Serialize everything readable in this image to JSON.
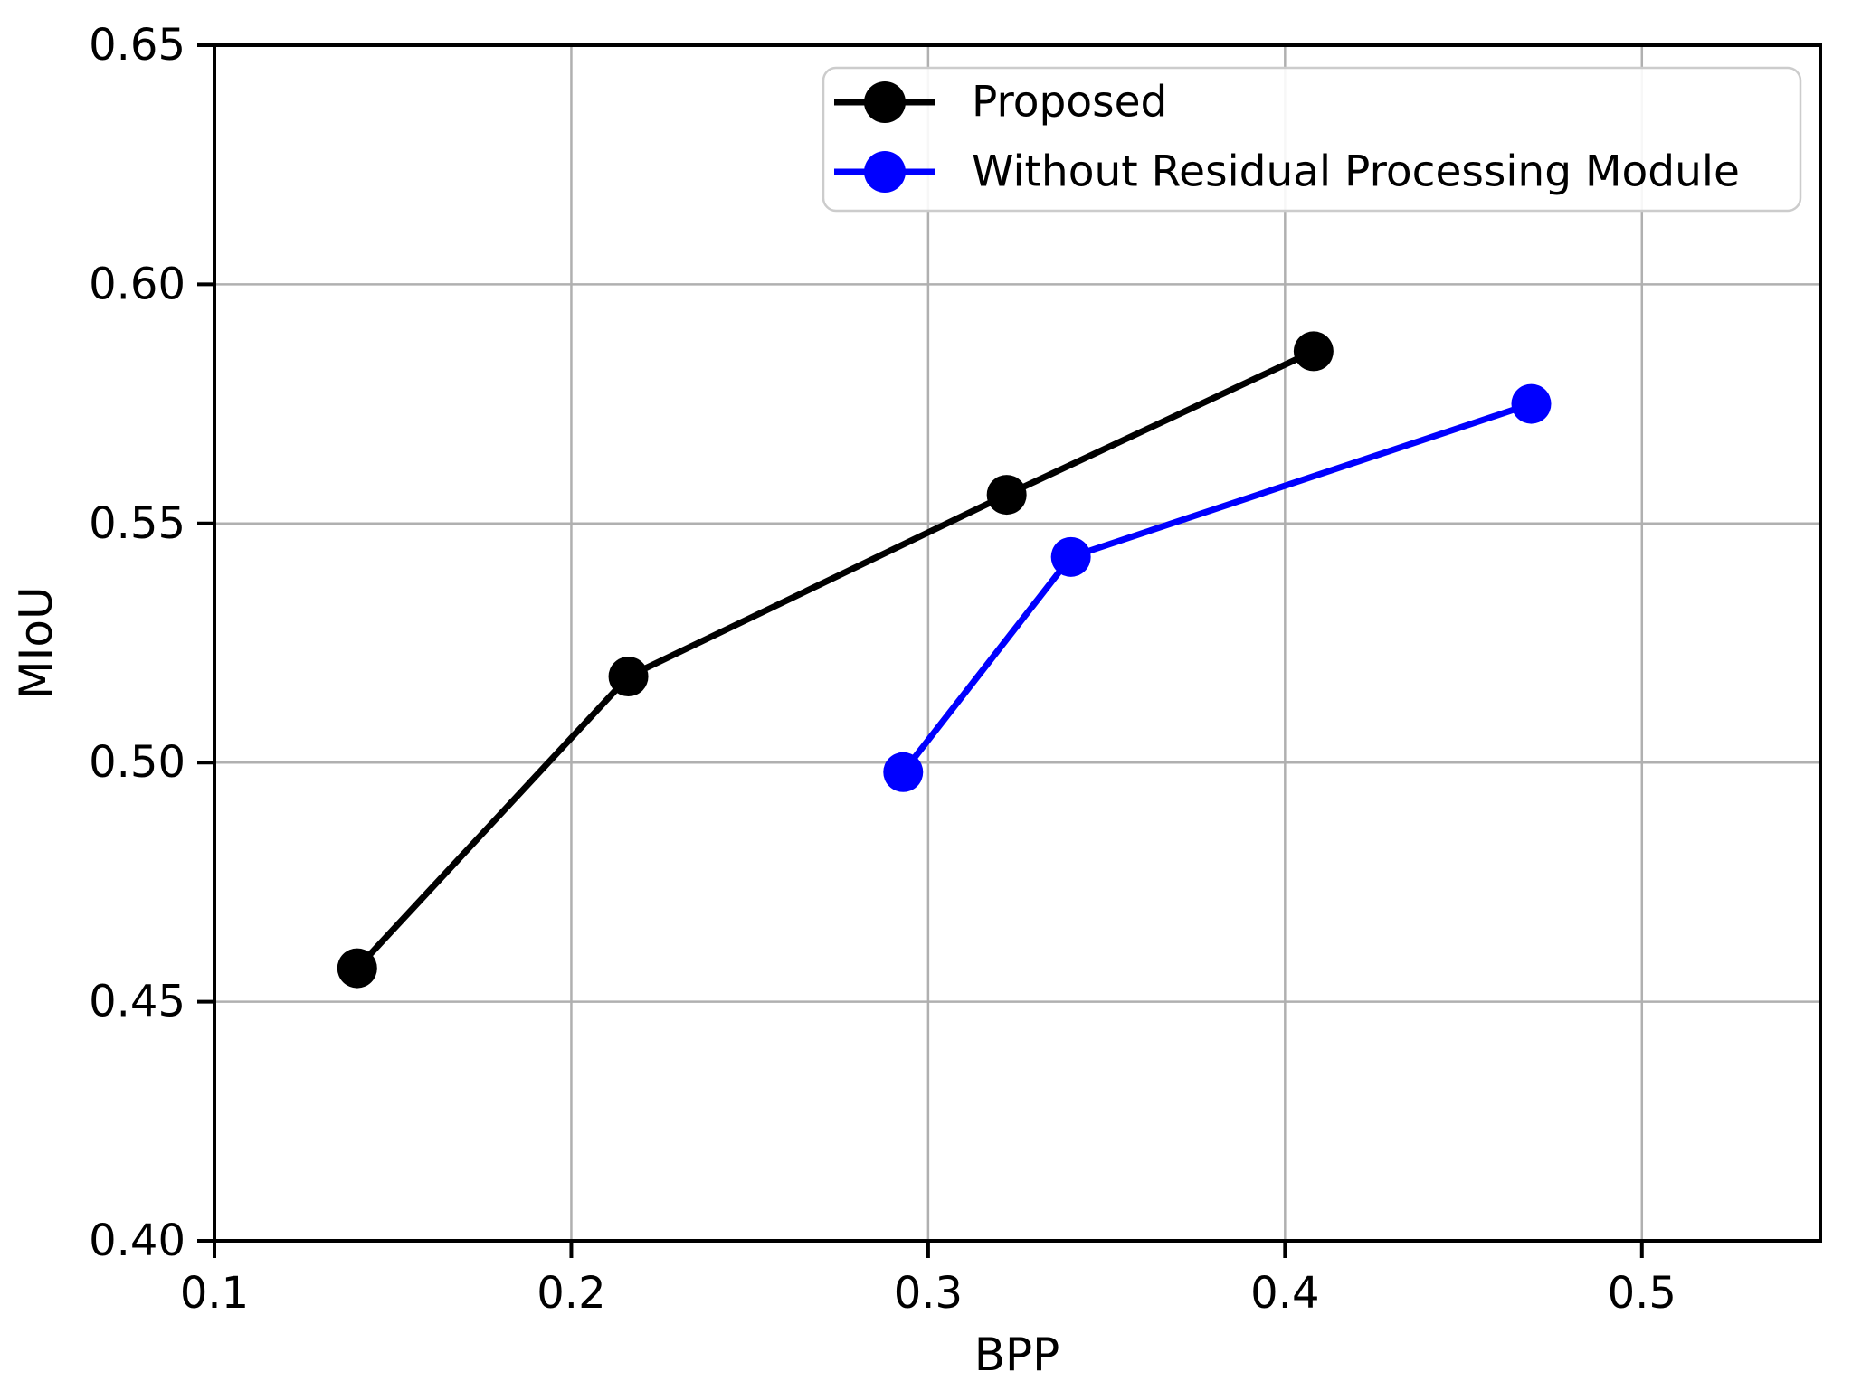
{
  "chart_data": {
    "type": "line",
    "title": "",
    "xlabel": "BPP",
    "ylabel": "MIoU",
    "xlim": [
      0.1,
      0.55
    ],
    "ylim": [
      0.4,
      0.65
    ],
    "xtick_values": [
      0.1,
      0.2,
      0.3,
      0.4,
      0.5
    ],
    "xtick_labels": [
      "0.1",
      "0.2",
      "0.3",
      "0.4",
      "0.5"
    ],
    "ytick_values": [
      0.4,
      0.45,
      0.5,
      0.55,
      0.6,
      0.65
    ],
    "ytick_labels": [
      "0.40",
      "0.45",
      "0.50",
      "0.55",
      "0.60",
      "0.65"
    ],
    "grid": true,
    "legend": {
      "position": "upper right",
      "entries": [
        "Proposed",
        "Without Residual Processing Module"
      ]
    },
    "series": [
      {
        "name": "Proposed",
        "color": "#000000",
        "marker": "circle",
        "points": [
          [
            0.14,
            0.457
          ],
          [
            0.216,
            0.518
          ],
          [
            0.322,
            0.556
          ],
          [
            0.408,
            0.586
          ]
        ]
      },
      {
        "name": "Without Residual Processing Module",
        "color": "#0000ff",
        "marker": "circle",
        "points": [
          [
            0.293,
            0.498
          ],
          [
            0.34,
            0.543
          ],
          [
            0.469,
            0.575
          ]
        ]
      }
    ],
    "colors": {
      "background": "#ffffff",
      "grid": "#b0b0b0",
      "axis": "#000000",
      "text": "#000000",
      "legend_border": "#cccccc",
      "legend_background": "#ffffff"
    }
  }
}
